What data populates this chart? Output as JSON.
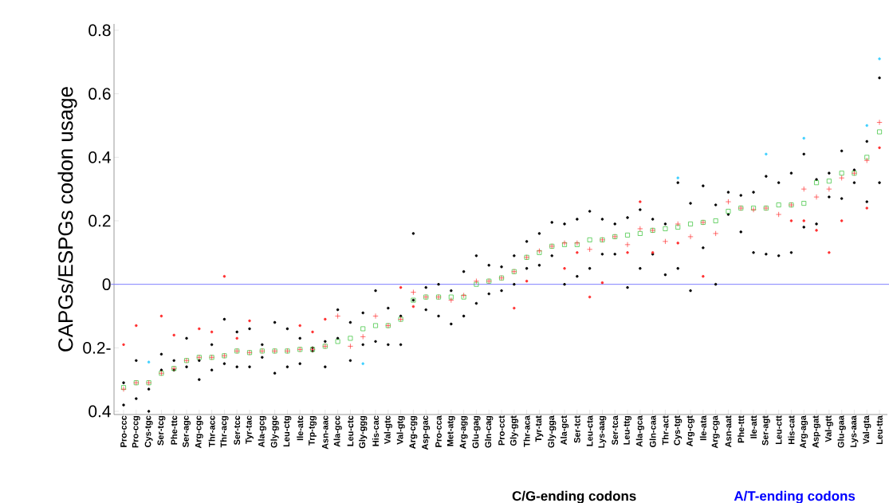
{
  "chart_data": {
    "type": "scatter",
    "ylabel": "CAPGs/ESPGs codon usage",
    "xlabel": "C/G-ending codons",
    "annotations": [
      "A/T-ending codons"
    ],
    "categories": [
      "Pro-ccc",
      "Pro-ccg",
      "Cys-tgc",
      "Ser-tcg",
      "Phe-ttc",
      "Ser-agc",
      "Arg-cgc",
      "Thr-acc",
      "Thr-acg",
      "Ser-tcc",
      "Tyr-tac",
      "Ala-gcg",
      "Gly-ggc",
      "Leu-ctg",
      "Ile-atc",
      "Trp-tgg",
      "Asn-aac",
      "Ala-gcc",
      "Leu-ctc",
      "Gly-ggg",
      "His-cac",
      "Val-gtc",
      "Val-gtg",
      "Arg-cgg",
      "Asp-gac",
      "Pro-cca",
      "Met-atg",
      "Arg-agg",
      "Glu-gag",
      "Gln-cag",
      "Pro-cct",
      "Gly-ggt",
      "Thr-aca",
      "Tyr-tat",
      "Gly-gga",
      "Ala-gct",
      "Ser-tct",
      "Leu-cta",
      "Lys-aag",
      "Ser-tca",
      "Leu-ttg",
      "Ala-gca",
      "Gln-caa",
      "Thr-act",
      "Cys-tgt",
      "Arg-cgt",
      "Ile-ata",
      "Arg-cga",
      "Asn-aat",
      "Phe-ttt",
      "Ile-att",
      "Ser-agt",
      "Leu-ctt",
      "His-cat",
      "Arg-aga",
      "Asp-gat",
      "Val-gtt",
      "Glu-gaa",
      "Lys-aaa",
      "Val-gta",
      "Leu-tta"
    ],
    "ylim": [
      -0.41,
      0.82
    ],
    "yticks": [
      {
        "value": -0.4,
        "label": "0.4"
      },
      {
        "value": -0.2,
        "label": "0.2-"
      },
      0,
      0.2,
      0.4,
      0.6,
      0.8
    ],
    "ref_lines": [
      {
        "axis": "y",
        "value": 0,
        "color": "#8080ff"
      }
    ],
    "series": [
      {
        "color": "#000000",
        "marker": "circle",
        "values": [
          -0.31,
          -0.24,
          -0.33,
          -0.22,
          -0.24,
          -0.17,
          -0.24,
          -0.19,
          -0.11,
          -0.15,
          -0.14,
          -0.19,
          -0.12,
          -0.14,
          -0.17,
          -0.2,
          -0.18,
          -0.08,
          -0.12,
          -0.09,
          -0.02,
          -0.075,
          -0.1,
          0.16,
          -0.01,
          0.0,
          -0.02,
          0.04,
          0.09,
          0.06,
          0.055,
          0.09,
          0.135,
          0.16,
          0.195,
          0.19,
          0.205,
          0.23,
          0.205,
          0.19,
          0.21,
          0.235,
          0.205,
          0.19,
          0.32,
          0.255,
          0.31,
          0.25,
          0.29,
          0.28,
          0.29,
          0.34,
          0.32,
          0.35,
          0.41,
          0.33,
          0.35,
          0.42,
          0.36,
          0.45,
          0.65
        ]
      },
      {
        "color": "#000000",
        "marker": "circle",
        "values": [
          -0.38,
          -0.36,
          -0.4,
          -0.27,
          -0.27,
          -0.26,
          -0.3,
          -0.27,
          -0.25,
          -0.26,
          -0.26,
          -0.23,
          -0.28,
          -0.26,
          -0.25,
          -0.21,
          -0.26,
          -0.17,
          -0.24,
          -0.19,
          -0.18,
          -0.19,
          -0.19,
          -0.05,
          -0.08,
          -0.1,
          -0.125,
          -0.1,
          -0.06,
          -0.03,
          -0.02,
          0.0,
          0.05,
          0.06,
          0.09,
          0.0,
          0.025,
          0.05,
          0.095,
          0.095,
          -0.01,
          0.05,
          0.095,
          0.03,
          0.05,
          -0.02,
          0.115,
          0.0,
          0.22,
          0.165,
          0.1,
          0.095,
          0.09,
          0.1,
          0.18,
          0.19,
          0.275,
          0.27,
          0.32,
          0.26,
          0.32
        ]
      },
      {
        "color": "#ff3030",
        "marker": "circle",
        "values": [
          -0.19,
          -0.13,
          null,
          -0.1,
          -0.16,
          null,
          -0.14,
          -0.15,
          0.025,
          -0.17,
          -0.115,
          null,
          null,
          null,
          -0.13,
          -0.15,
          -0.11,
          null,
          null,
          null,
          null,
          null,
          -0.01,
          -0.07,
          null,
          null,
          null,
          null,
          null,
          null,
          null,
          -0.075,
          0.01,
          null,
          null,
          0.05,
          0.1,
          -0.04,
          0.005,
          null,
          0.1,
          0.26,
          0.1,
          null,
          0.13,
          null,
          0.025,
          null,
          null,
          null,
          null,
          null,
          null,
          0.2,
          0.2,
          0.17,
          0.1,
          0.2,
          null,
          0.24,
          0.43
        ]
      },
      {
        "color": "#40d0ff",
        "marker": "circle",
        "values": [
          null,
          null,
          -0.245,
          null,
          null,
          null,
          null,
          null,
          null,
          null,
          null,
          null,
          null,
          null,
          null,
          null,
          null,
          null,
          null,
          -0.25,
          null,
          null,
          null,
          null,
          null,
          null,
          null,
          null,
          null,
          null,
          null,
          null,
          null,
          null,
          null,
          null,
          null,
          null,
          null,
          null,
          null,
          null,
          null,
          null,
          0.335,
          null,
          null,
          null,
          null,
          null,
          null,
          0.41,
          null,
          null,
          0.46,
          null,
          null,
          null,
          null,
          0.5,
          0.71
        ]
      },
      {
        "color": "#30c030",
        "marker": "square",
        "values": [
          -0.325,
          -0.31,
          -0.31,
          -0.28,
          -0.265,
          -0.24,
          -0.23,
          -0.23,
          -0.225,
          -0.21,
          -0.215,
          -0.21,
          -0.21,
          -0.21,
          -0.205,
          -0.205,
          -0.195,
          -0.18,
          -0.17,
          -0.14,
          -0.13,
          -0.13,
          -0.11,
          -0.05,
          -0.04,
          -0.04,
          -0.04,
          -0.04,
          0.0,
          0.01,
          0.02,
          0.04,
          0.085,
          0.1,
          0.12,
          0.125,
          0.125,
          0.14,
          0.14,
          0.15,
          0.155,
          0.16,
          0.17,
          0.175,
          0.18,
          0.19,
          0.195,
          0.2,
          0.23,
          0.24,
          0.24,
          0.24,
          0.25,
          0.25,
          0.255,
          0.32,
          0.325,
          0.35,
          0.35,
          0.4,
          0.48
        ]
      },
      {
        "color": "#ff3030",
        "marker": "cross",
        "values": [
          -0.33,
          -0.31,
          -0.31,
          -0.28,
          -0.265,
          -0.24,
          -0.23,
          -0.23,
          -0.225,
          -0.21,
          -0.215,
          -0.21,
          -0.21,
          -0.21,
          -0.205,
          -0.205,
          -0.195,
          -0.1,
          -0.195,
          -0.165,
          -0.1,
          -0.13,
          -0.11,
          -0.025,
          -0.04,
          -0.04,
          -0.05,
          -0.035,
          0.01,
          0.01,
          0.02,
          0.04,
          0.085,
          0.105,
          0.12,
          0.13,
          0.13,
          0.11,
          0.14,
          0.15,
          0.125,
          0.175,
          0.17,
          0.135,
          0.19,
          0.15,
          0.195,
          0.16,
          0.26,
          0.24,
          0.235,
          0.24,
          0.22,
          0.25,
          0.3,
          0.275,
          0.3,
          0.335,
          0.35,
          0.39,
          0.51
        ]
      }
    ]
  }
}
